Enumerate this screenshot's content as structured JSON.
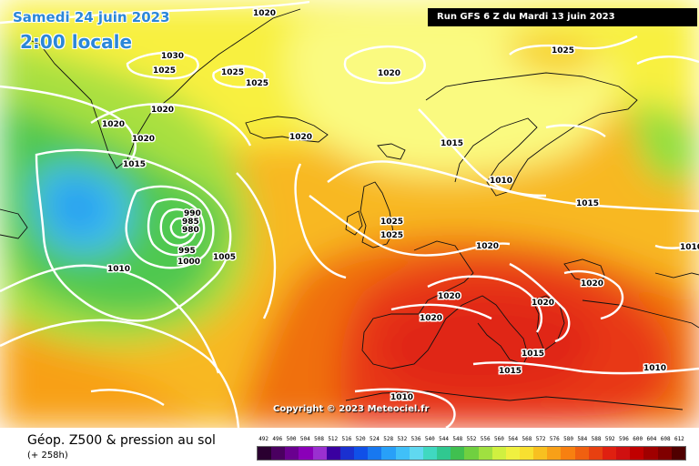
{
  "header": {
    "date": "Samedi 24 juin 2023",
    "time": "2:00 locale",
    "run": "Run GFS 6 Z du Mardi 13 juin 2023"
  },
  "copyright": "Copyright © 2023 Meteociel.fr",
  "footer": {
    "title": "Géop. Z500 & pression au sol",
    "subtitle": "(+ 258h)"
  },
  "legend": {
    "labels": [
      "492",
      "496",
      "500",
      "504",
      "508",
      "512",
      "516",
      "520",
      "524",
      "528",
      "532",
      "536",
      "540",
      "544",
      "548",
      "552",
      "556",
      "560",
      "564",
      "568",
      "572",
      "576",
      "580",
      "584",
      "588",
      "592",
      "596",
      "600",
      "604",
      "608",
      "612"
    ],
    "colors": [
      "#2a0030",
      "#4a0060",
      "#6a0090",
      "#8a00b8",
      "#9a30d0",
      "#3a00a0",
      "#1a30d0",
      "#1050e8",
      "#1878f0",
      "#28a0f8",
      "#40c0f8",
      "#60d8f0",
      "#40d8c0",
      "#30c890",
      "#40c050",
      "#70d040",
      "#a0e040",
      "#d0f040",
      "#f0f040",
      "#f8e030",
      "#f8c020",
      "#f8a018",
      "#f88010",
      "#f06010",
      "#e84010",
      "#e02010",
      "#d01010",
      "#c00000",
      "#a00000",
      "#800000",
      "#500000"
    ]
  },
  "pressure_labels": [
    {
      "id": "p1020-top",
      "text": "1020"
    },
    {
      "id": "p1030",
      "text": "1030"
    },
    {
      "id": "p1025-a",
      "text": "1025"
    },
    {
      "id": "p1025-b",
      "text": "1025"
    },
    {
      "id": "p1025-c",
      "text": "1025"
    },
    {
      "id": "p1020-b",
      "text": "1020"
    },
    {
      "id": "p1020-c",
      "text": "1020"
    },
    {
      "id": "p1020-d",
      "text": "1020"
    },
    {
      "id": "p1015-a",
      "text": "1015"
    },
    {
      "id": "p1020-e",
      "text": "1020"
    },
    {
      "id": "p1020-f",
      "text": "1020"
    },
    {
      "id": "p1025-d",
      "text": "1025"
    },
    {
      "id": "p1015-b",
      "text": "1015"
    },
    {
      "id": "p1010-a",
      "text": "1010"
    },
    {
      "id": "p1015-c",
      "text": "1015"
    },
    {
      "id": "p990",
      "text": "990"
    },
    {
      "id": "p985",
      "text": "985"
    },
    {
      "id": "p980",
      "text": "980"
    },
    {
      "id": "p995",
      "text": "995"
    },
    {
      "id": "p1000",
      "text": "1000"
    },
    {
      "id": "p1005",
      "text": "1005"
    },
    {
      "id": "p1010-b",
      "text": "1010"
    },
    {
      "id": "p1025-e",
      "text": "1025"
    },
    {
      "id": "p1025-f",
      "text": "1025"
    },
    {
      "id": "p1020-g",
      "text": "1020"
    },
    {
      "id": "p1020-h",
      "text": "1020"
    },
    {
      "id": "p1020-i",
      "text": "1020"
    },
    {
      "id": "p1020-j",
      "text": "1020"
    },
    {
      "id": "p1020-k",
      "text": "1020"
    },
    {
      "id": "p1015-d",
      "text": "1015"
    },
    {
      "id": "p1015-e",
      "text": "1015"
    },
    {
      "id": "p1010-c",
      "text": "1010"
    },
    {
      "id": "p1010-d",
      "text": "1010"
    },
    {
      "id": "p1010-e",
      "text": "1010"
    }
  ]
}
